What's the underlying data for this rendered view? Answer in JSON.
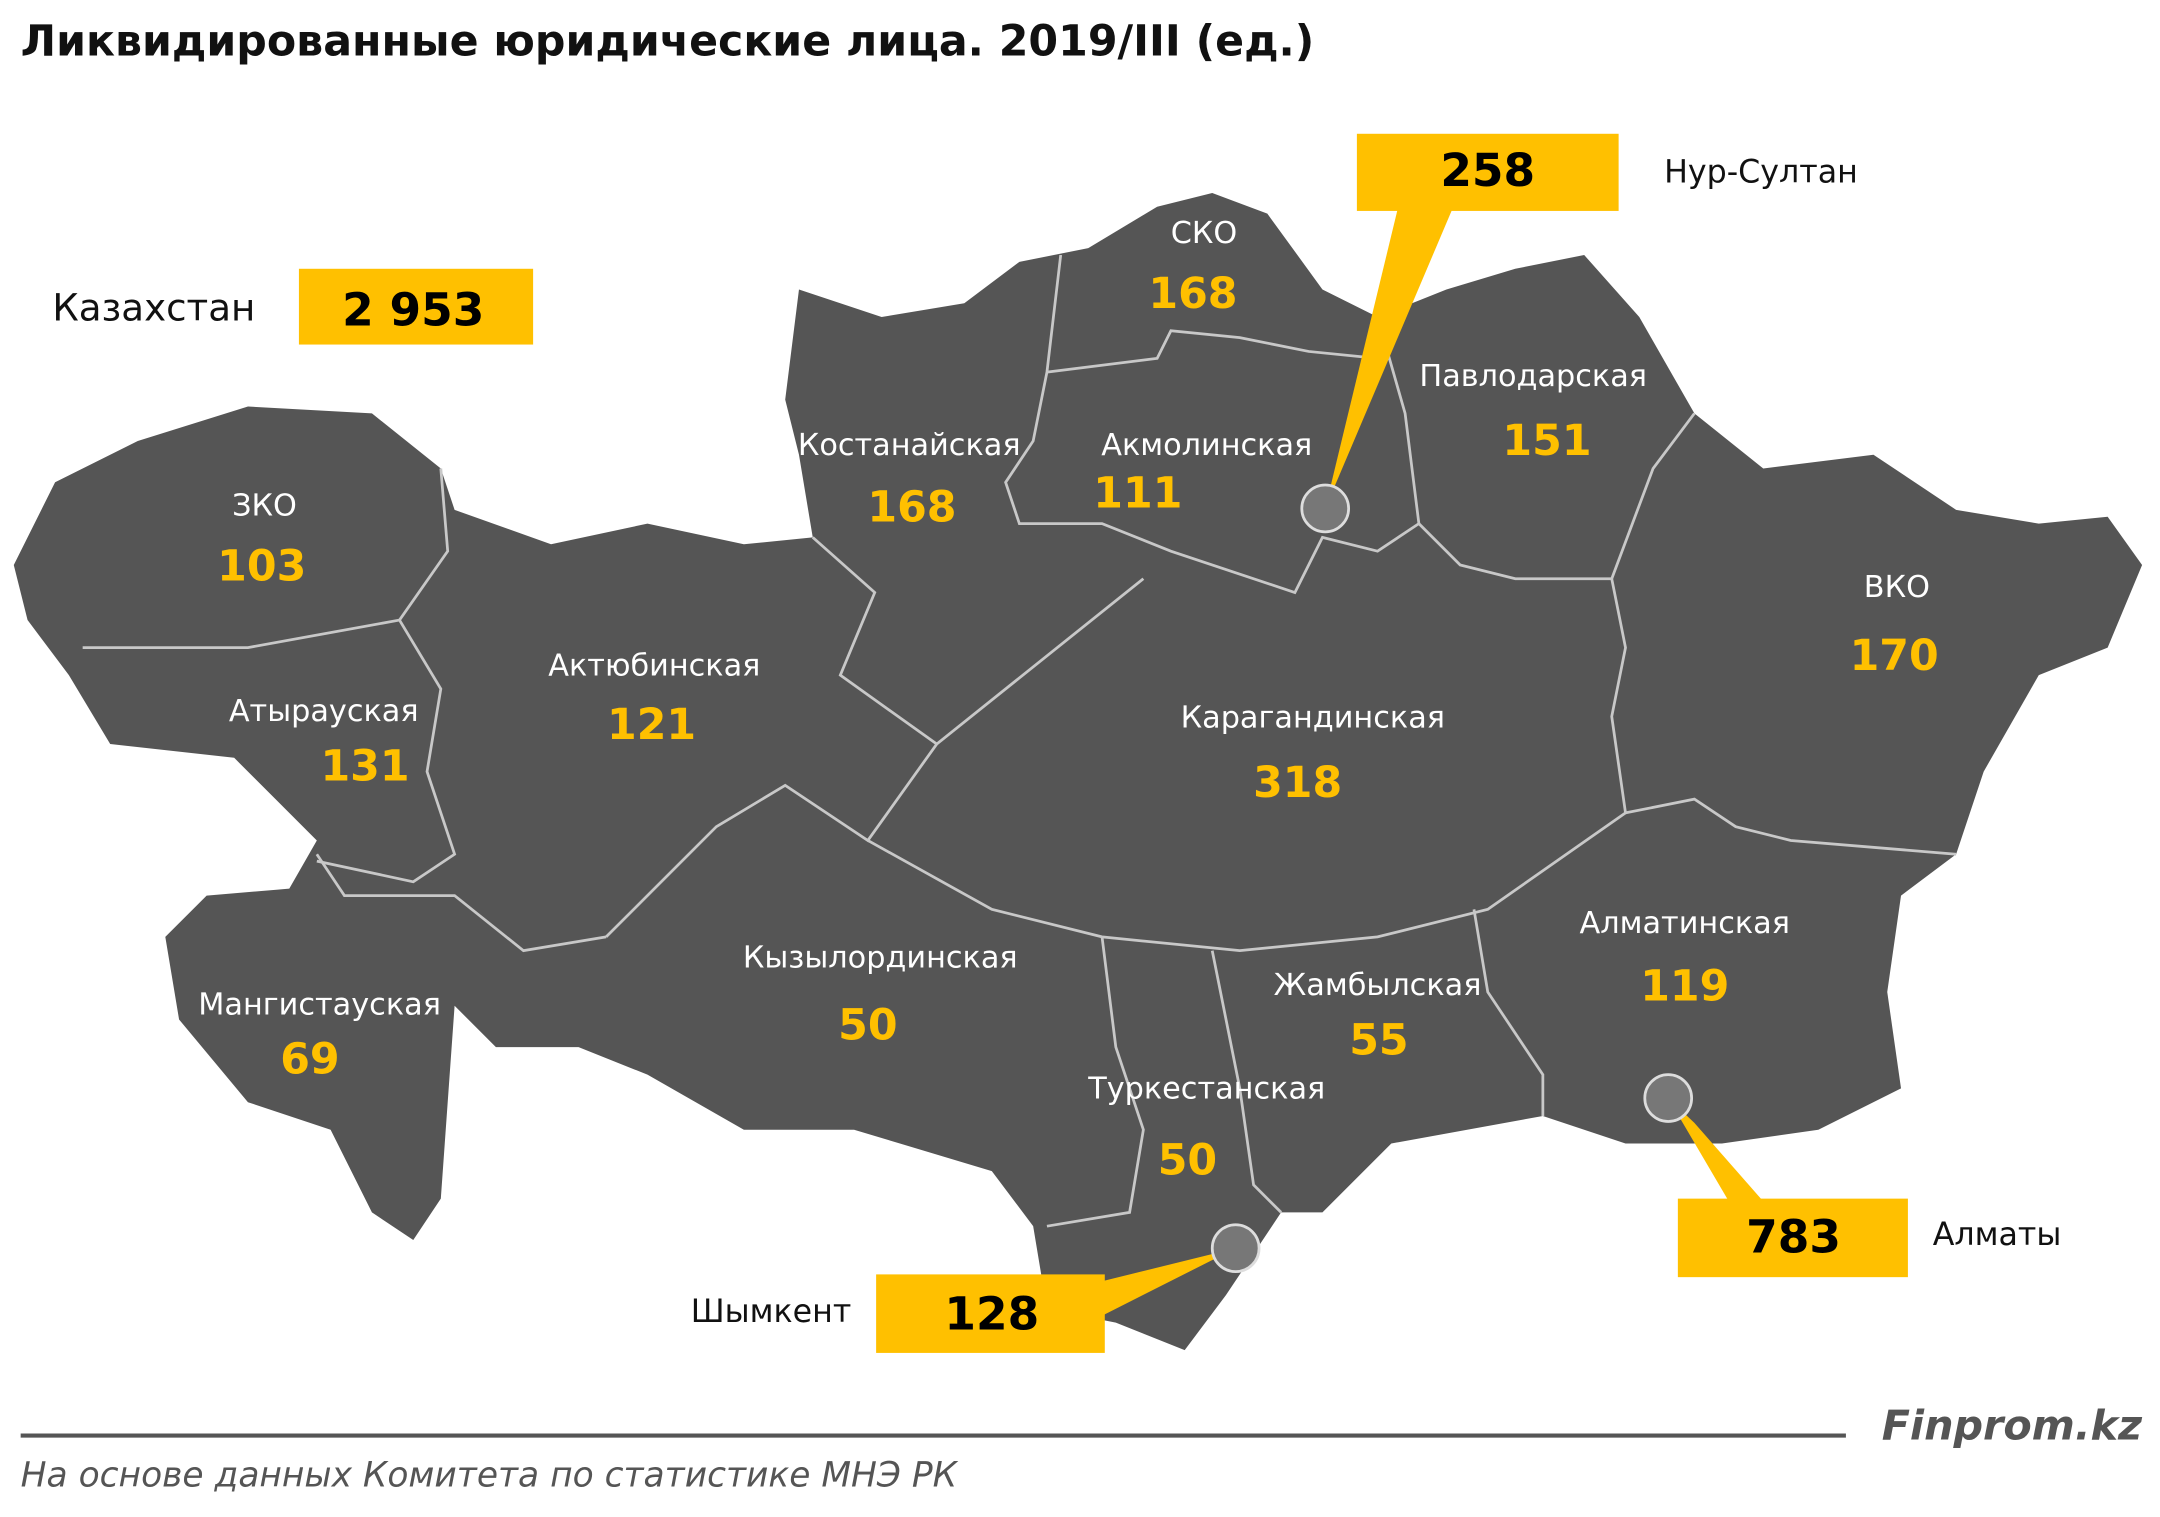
{
  "title": "Ликвидированные юридические лица. 2019/III (ед.)",
  "total": {
    "label": "Казахстан",
    "value": "2 953"
  },
  "regions": [
    {
      "name": "ЗКО",
      "value": 103
    },
    {
      "name": "Атырауская",
      "value": 131
    },
    {
      "name": "Актюбинская",
      "value": 121
    },
    {
      "name": "Мангистауская",
      "value": 69
    },
    {
      "name": "Костанайская",
      "value": 168
    },
    {
      "name": "СКО",
      "value": 168
    },
    {
      "name": "Акмолинская",
      "value": 111
    },
    {
      "name": "Павлодарская",
      "value": 151
    },
    {
      "name": "ВКО",
      "value": 170
    },
    {
      "name": "Карагандинская",
      "value": 318
    },
    {
      "name": "Кызылординская",
      "value": 50
    },
    {
      "name": "Жамбылская",
      "value": 55
    },
    {
      "name": "Туркестанская",
      "value": 50
    },
    {
      "name": "Алматинская",
      "value": 119
    }
  ],
  "cities": [
    {
      "name": "Нур-Султан",
      "value": 258
    },
    {
      "name": "Алматы",
      "value": 783
    },
    {
      "name": "Шымкент",
      "value": 128
    }
  ],
  "footer": {
    "brand": "Finprom.kz",
    "source": "На основе данных  Комитета по статистике МНЭ РК"
  }
}
